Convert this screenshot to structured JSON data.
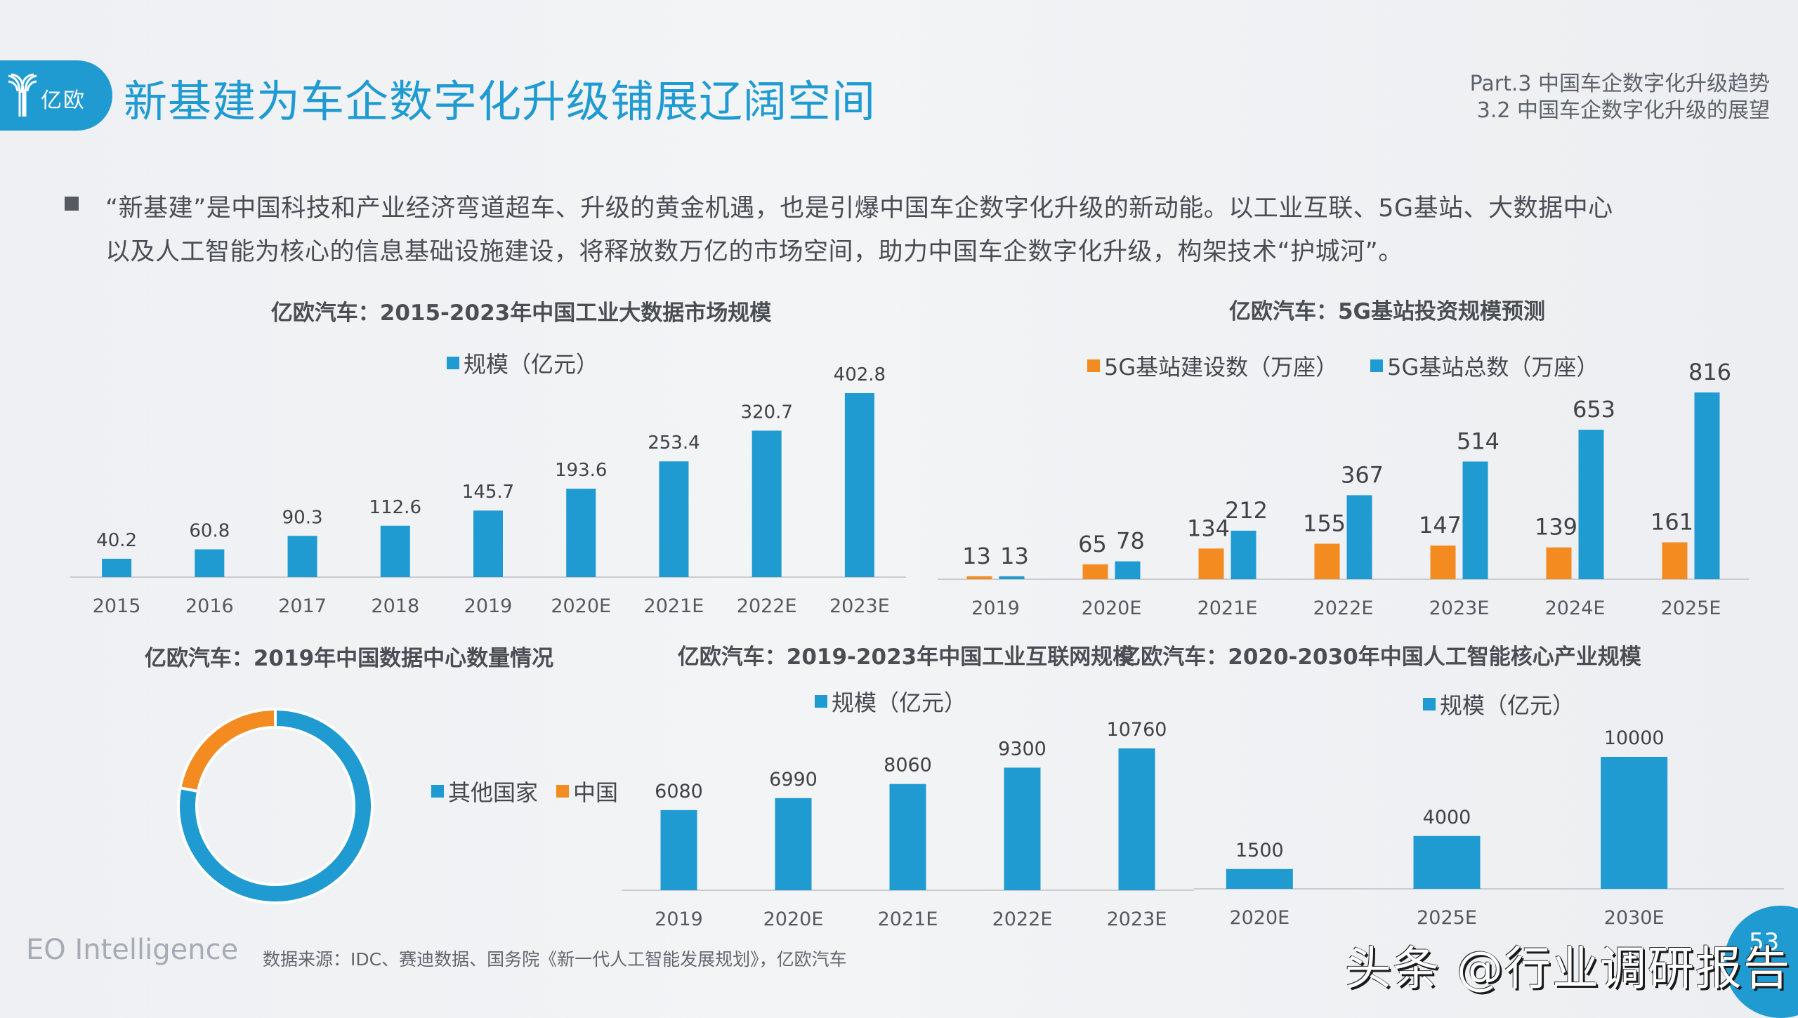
{
  "header": {
    "logo_text": "亿欧",
    "title": "新基建为车企数字化升级铺展辽阔空间",
    "part": "Part.3 中国车企数字化升级趋势",
    "section": "3.2 中国车企数字化升级的展望"
  },
  "intro": {
    "line1": "“新基建”是中国科技和产业经济弯道超车、升级的黄金机遇，也是引爆中国车企数字化升级的新动能。以工业互联、5G基站、大数据中心",
    "line2": "以及人工智能为核心的信息基础设施建设，将释放数万亿的市场空间，助力中国车企数字化升级，构架技术“护城河”。"
  },
  "colors": {
    "brand_blue": "#1f9bd2",
    "accent_orange": "#f38b20",
    "text_dark": "#44484d",
    "axis_gray": "#c9ccd0"
  },
  "chart_data": [
    {
      "id": "industrial-big-data",
      "type": "bar",
      "title": "亿欧汽车：2015-2023年中国工业大数据市场规模",
      "legend": [
        "规模（亿元）"
      ],
      "legend_placement": "top",
      "categories": [
        "2015",
        "2016",
        "2017",
        "2018",
        "2019",
        "2020E",
        "2021E",
        "2022E",
        "2023E"
      ],
      "series": [
        {
          "name": "规模（亿元）",
          "color": "#1f9bd2",
          "values": [
            40.2,
            60.8,
            90.3,
            112.6,
            145.7,
            193.6,
            253.4,
            320.7,
            402.8
          ],
          "labels": [
            "40.2",
            "60.8",
            "90.3",
            "112.6",
            "145.7",
            "193.6",
            "253.4",
            "320.7",
            "402.8"
          ]
        }
      ],
      "ylim": [
        0,
        402.8
      ],
      "grid": false
    },
    {
      "id": "5g-base-station",
      "type": "bar",
      "title": "亿欧汽车：5G基站投资规模预测",
      "legend": [
        "5G基站建设数（万座）",
        "5G基站总数（万座）"
      ],
      "legend_placement": "top",
      "categories": [
        "2019",
        "2020E",
        "2021E",
        "2022E",
        "2023E",
        "2024E",
        "2025E"
      ],
      "series": [
        {
          "name": "5G基站建设数（万座）",
          "color": "#f38b20",
          "values": [
            13,
            65,
            134,
            155,
            147,
            139,
            161
          ],
          "labels": [
            "13",
            "65",
            "134",
            "155",
            "147",
            "139",
            "161"
          ]
        },
        {
          "name": "5G基站总数（万座）",
          "color": "#1f9bd2",
          "values": [
            13,
            78,
            212,
            367,
            514,
            653,
            816
          ],
          "labels": [
            "13",
            "78",
            "212",
            "367",
            "514",
            "653",
            "816"
          ]
        }
      ],
      "ylim": [
        0,
        816
      ],
      "grid": false
    },
    {
      "id": "data-center-count",
      "type": "pie",
      "donut": true,
      "title": "亿欧汽车：2019年中国数据中心数量情况",
      "legend": [
        "其他国家",
        "中国"
      ],
      "legend_placement": "right",
      "slices": [
        {
          "name": "其他国家",
          "color": "#1f9bd2",
          "percent": 78
        },
        {
          "name": "中国",
          "color": "#f38b20",
          "percent": 22
        }
      ]
    },
    {
      "id": "industrial-internet",
      "type": "bar",
      "title": "亿欧汽车：2019-2023年中国工业互联网规模",
      "legend": [
        "规模（亿元）"
      ],
      "legend_placement": "top",
      "categories": [
        "2019",
        "2020E",
        "2021E",
        "2022E",
        "2023E"
      ],
      "series": [
        {
          "name": "规模（亿元）",
          "color": "#1f9bd2",
          "values": [
            6080,
            6990,
            8060,
            9300,
            10760
          ],
          "labels": [
            "6080",
            "6990",
            "8060",
            "9300",
            "10760"
          ]
        }
      ],
      "ylim": [
        0,
        10760
      ],
      "grid": false
    },
    {
      "id": "ai-core-industry",
      "type": "bar",
      "title": "亿欧汽车：2020-2030年中国人工智能核心产业规模",
      "legend": [
        "规模（亿元）"
      ],
      "legend_placement": "top",
      "categories": [
        "2020E",
        "2025E",
        "2030E"
      ],
      "series": [
        {
          "name": "规模（亿元）",
          "color": "#1f9bd2",
          "values": [
            1500,
            4000,
            10000
          ],
          "labels": [
            "1500",
            "4000",
            "10000"
          ]
        }
      ],
      "ylim": [
        0,
        10000
      ],
      "grid": false
    }
  ],
  "footer": {
    "brand": "EO Intelligence",
    "source": "数据来源：IDC、赛迪数据、国务院《新一代人工智能发展规划》，亿欧汽车",
    "page_number": "53",
    "watermark": "头条 @行业调研报告"
  }
}
